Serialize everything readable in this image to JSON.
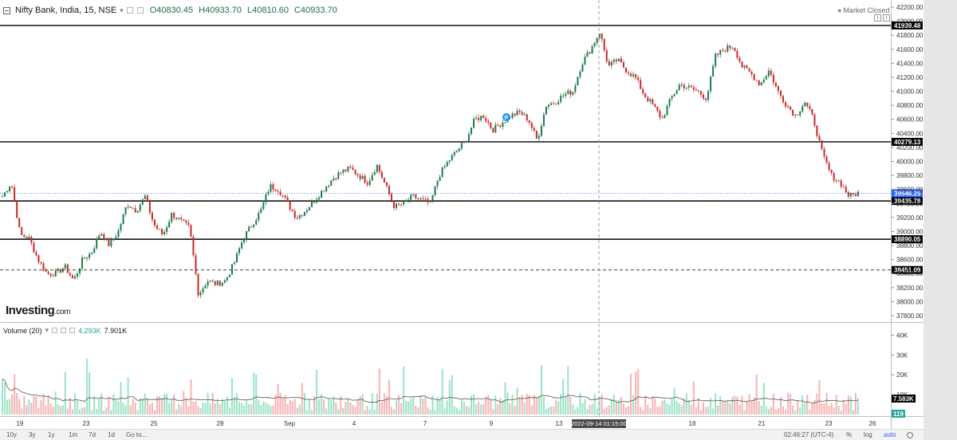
{
  "legend": {
    "symbol": "Nifty Bank, India, 15, NSE",
    "open": "O40830.45",
    "high": "H40933.70",
    "low": "L40810.60",
    "close": "C40933.70"
  },
  "market_status": "Market Closed",
  "volume_legend": {
    "label": "Volume (20)",
    "value1": "4.293K",
    "value2": "7.901K"
  },
  "brand": {
    "name": "Investing",
    "suffix": ".com"
  },
  "colors": {
    "up": "#26a69a",
    "down": "#ef5350",
    "up_vol": "#9be3c4",
    "down_vol": "#f7b3b3",
    "price_tag": "#2962ff",
    "level": "#000000"
  },
  "chart_data": {
    "type": "candlestick",
    "y_axis": {
      "min": 37700,
      "max": 42250,
      "ticks": [
        37800,
        38000,
        38200,
        38400,
        38600,
        38800,
        39000,
        39200,
        39400,
        39600,
        39800,
        40000,
        40200,
        40400,
        40600,
        40800,
        41000,
        41200,
        41400,
        41600,
        41800,
        42000,
        42200
      ]
    },
    "x_axis_labels": [
      "19",
      "23",
      "25",
      "28",
      "Sep",
      "4",
      "7",
      "9",
      "13",
      "14",
      "18",
      "21",
      "23",
      "26"
    ],
    "horizontal_levels": [
      {
        "value": 41939.48,
        "label": "41939.48",
        "style": "solid"
      },
      {
        "value": 40279.13,
        "label": "40279.13",
        "style": "solid"
      },
      {
        "value": 39435.78,
        "label": "39435.78",
        "style": "solid"
      },
      {
        "value": 38890.05,
        "label": "38890.05",
        "style": "solid"
      },
      {
        "value": 38451.09,
        "label": "38451.09",
        "style": "dashed"
      }
    ],
    "last_price": {
      "value": 39546.25,
      "label": "39546.25"
    },
    "crosshair_time": "2022-09-14 01:15:00",
    "anchors": [
      39500,
      39700,
      38950,
      38900,
      38600,
      38400,
      38400,
      38500,
      38300,
      38600,
      38700,
      39000,
      38800,
      39000,
      39400,
      39300,
      39500,
      39100,
      38950,
      39250,
      39150,
      39050,
      38100,
      38300,
      38250,
      38300,
      38550,
      38900,
      39100,
      39300,
      39650,
      39600,
      39400,
      39200,
      39300,
      39450,
      39600,
      39750,
      39850,
      39900,
      39800,
      39700,
      39950,
      39650,
      39350,
      39400,
      39500,
      39450,
      39400,
      39800,
      40000,
      40150,
      40300,
      40600,
      40650,
      40450,
      40550,
      40650,
      40700,
      40600,
      40300,
      40800,
      40850,
      40950,
      41000,
      41400,
      41600,
      41850,
      41350,
      41450,
      41300,
      41200,
      40950,
      40800,
      40600,
      40900,
      41100,
      41050,
      41000,
      40900,
      41500,
      41600,
      41650,
      41350,
      41250,
      41100,
      41300,
      41000,
      40800,
      40650,
      40850,
      40600,
      40100,
      39800,
      39700,
      39500,
      39550
    ],
    "volume_axis": {
      "ticks": [
        "40K",
        "30K",
        "20K",
        "10K"
      ],
      "max": 45000
    },
    "volume_last": {
      "ma": "7.583K",
      "value": "119"
    }
  },
  "bottom_bar": {
    "timeframes": [
      "10y",
      "3y",
      "1y",
      "1m",
      "7d",
      "1d",
      "Go to..."
    ],
    "clock": "02:46:27 (UTC-4)",
    "options": [
      "%",
      "log",
      "auto"
    ]
  }
}
